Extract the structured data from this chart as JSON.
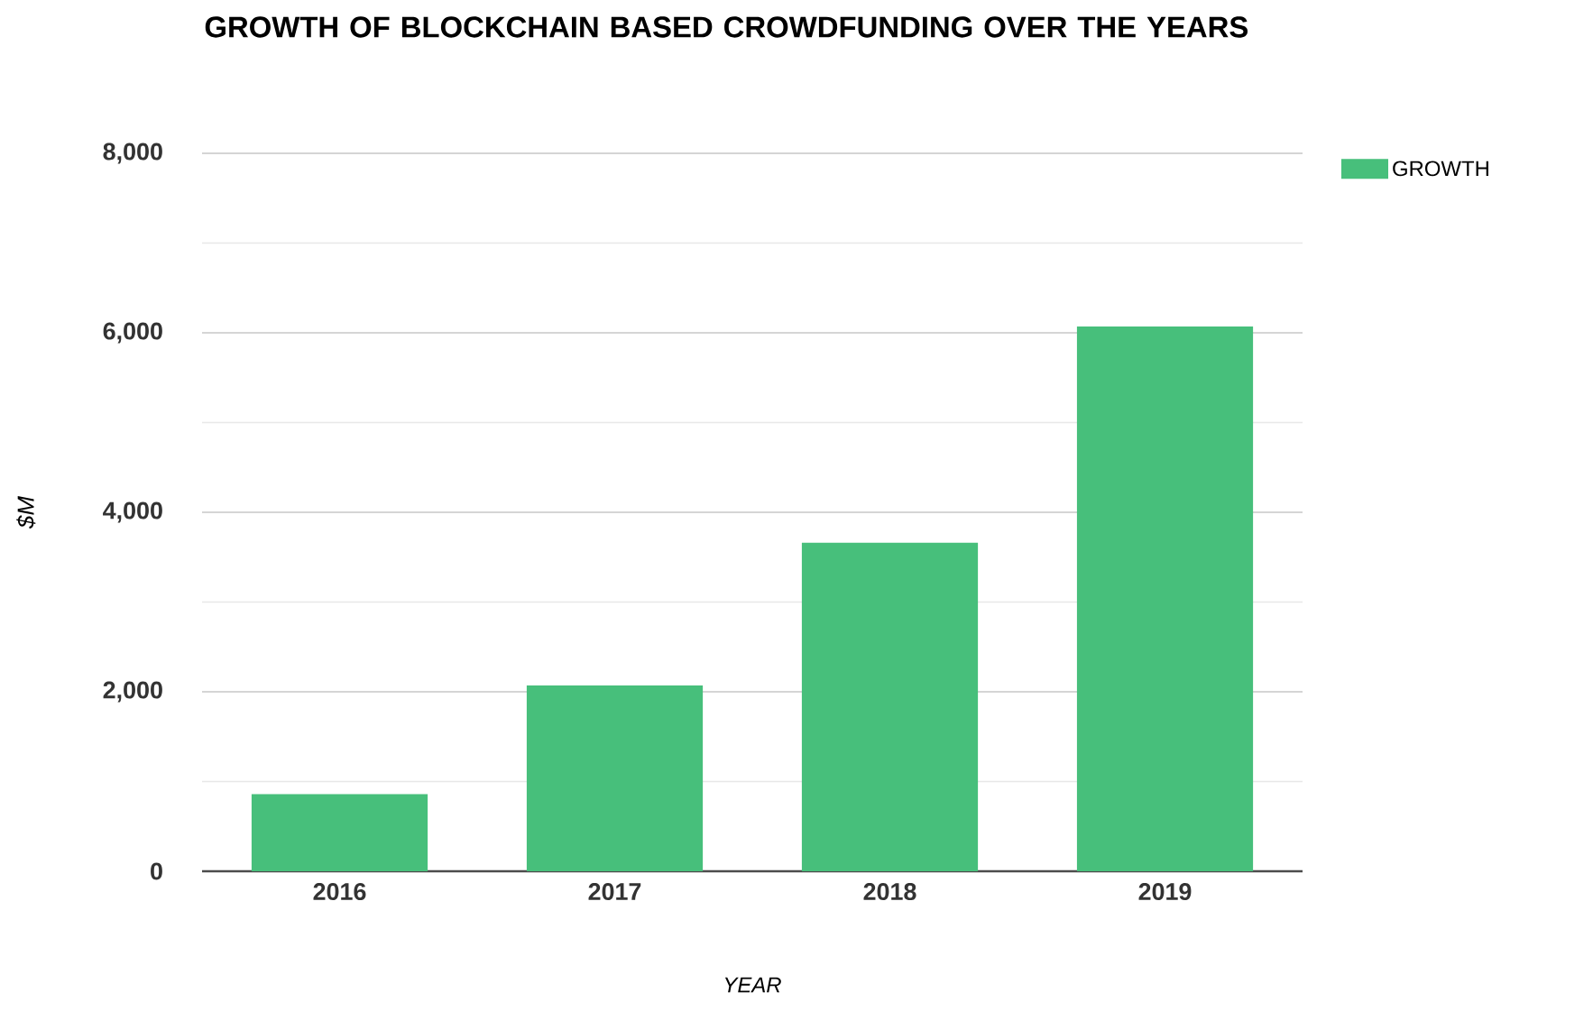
{
  "chart_data": {
    "type": "bar",
    "title": "GROWTH OF BLOCKCHAIN BASED CROWDFUNDING OVER THE YEARS",
    "xlabel": "YEAR",
    "ylabel": "$M",
    "categories": [
      "2016",
      "2017",
      "2018",
      "2019"
    ],
    "series": [
      {
        "name": "GROWTH",
        "color": "#47bf7b",
        "values": [
          860,
          2070,
          3660,
          6070
        ]
      }
    ],
    "ylim": [
      0,
      8000
    ],
    "yticks": [
      {
        "value": 0,
        "label": "0"
      },
      {
        "value": 2000,
        "label": "2,000"
      },
      {
        "value": 4000,
        "label": "4,000"
      },
      {
        "value": 6000,
        "label": "6,000"
      },
      {
        "value": 8000,
        "label": "8,000"
      }
    ],
    "grid": "y",
    "legend": "top right"
  }
}
